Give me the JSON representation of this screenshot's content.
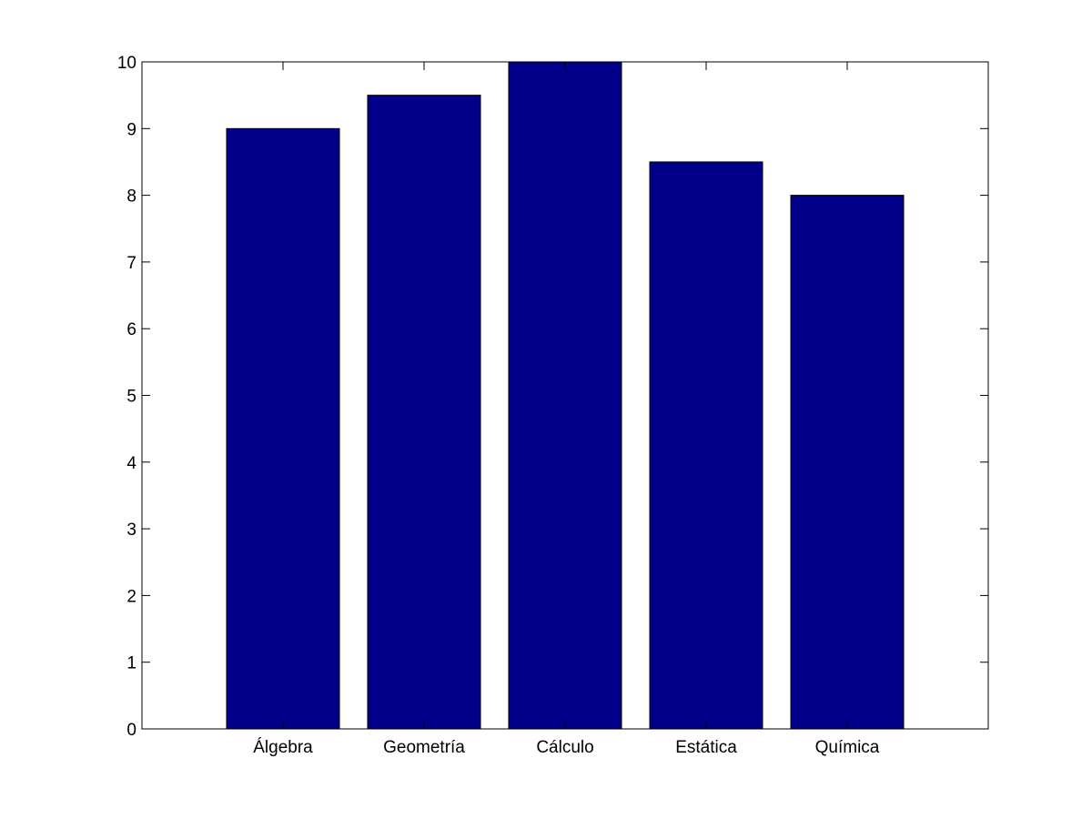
{
  "chart_data": {
    "type": "bar",
    "title": "",
    "xlabel": "",
    "ylabel": "",
    "categories": [
      "Álgebra",
      "Geometría",
      "Cálculo",
      "Estática",
      "Química"
    ],
    "values": [
      9,
      9.5,
      10,
      8.5,
      8
    ],
    "ylim": [
      0,
      10
    ],
    "yticks": [
      "0",
      "1",
      "2",
      "3",
      "4",
      "5",
      "6",
      "7",
      "8",
      "9",
      "10"
    ],
    "grid": false,
    "legend": "none",
    "bar_color": "#00008b",
    "bar_edge_color": "#000000",
    "axes_color": "#000000",
    "background": "#ffffff"
  }
}
